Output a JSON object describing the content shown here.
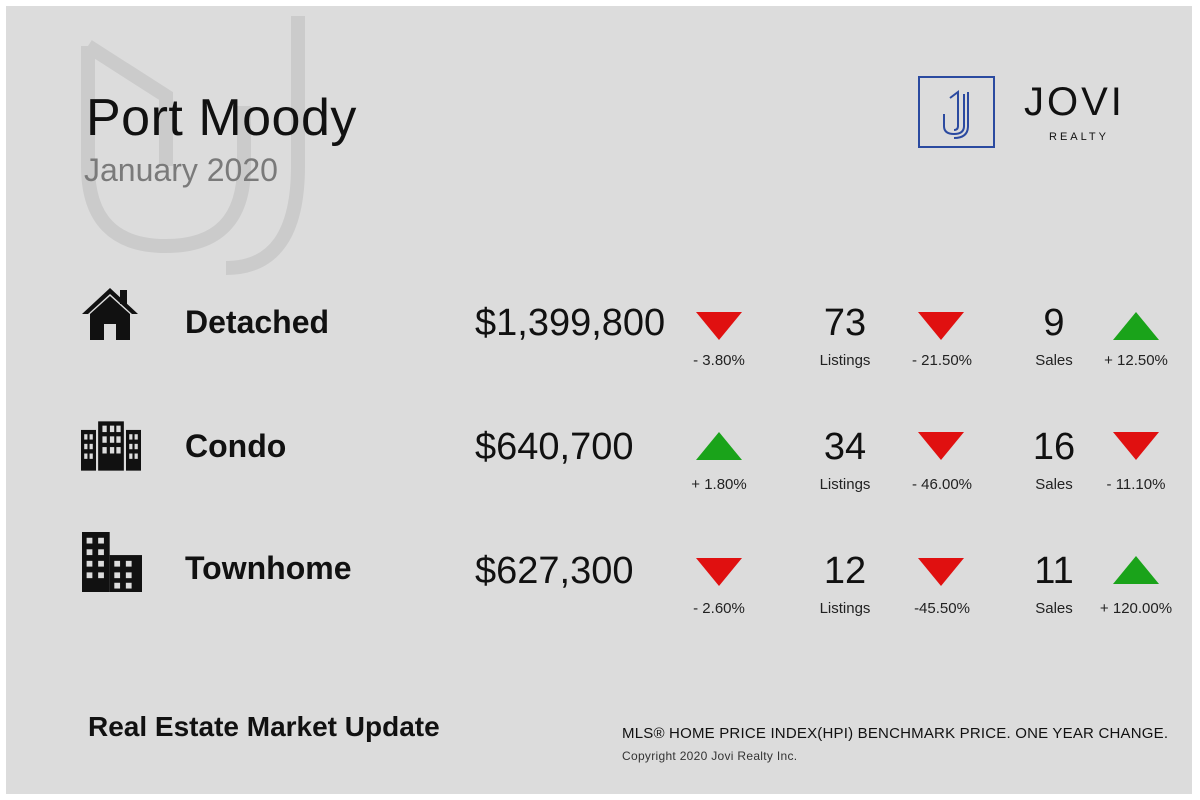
{
  "header": {
    "city": "Port Moody",
    "month": "January 2020"
  },
  "logo": {
    "mark": "J",
    "word": "JOVI",
    "sub": "REALTY",
    "color": "#2b4aa0"
  },
  "colors": {
    "down": "#e01010",
    "up": "#1aa31a"
  },
  "rows": [
    {
      "label": "Detached",
      "icon": "house-icon",
      "price": "$1,399,800",
      "price_change": "- 3.80%",
      "price_dir": "down",
      "listings": "73",
      "listings_label": "Listings",
      "listings_change": "- 21.50%",
      "listings_dir": "down",
      "sales": "9",
      "sales_label": "Sales",
      "sales_change": "+ 12.50%",
      "sales_dir": "up"
    },
    {
      "label": "Condo",
      "icon": "condo-building-icon",
      "price": "$640,700",
      "price_change": "+ 1.80%",
      "price_dir": "up",
      "listings": "34",
      "listings_label": "Listings",
      "listings_change": "- 46.00%",
      "listings_dir": "down",
      "sales": "16",
      "sales_label": "Sales",
      "sales_change": "- 11.10%",
      "sales_dir": "down"
    },
    {
      "label": "Townhome",
      "icon": "townhome-building-icon",
      "price": "$627,300",
      "price_change": "- 2.60%",
      "price_dir": "down",
      "listings": "12",
      "listings_label": "Listings",
      "listings_change": "-45.50%",
      "listings_dir": "down",
      "sales": "11",
      "sales_label": "Sales",
      "sales_change": "+ 120.00%",
      "sales_dir": "up"
    }
  ],
  "footer": {
    "title": "Real Estate Market Update",
    "note": "MLS® HOME PRICE INDEX(HPI) BENCHMARK PRICE. ONE YEAR CHANGE.",
    "copyright": "Copyright 2020 Jovi Realty Inc."
  }
}
